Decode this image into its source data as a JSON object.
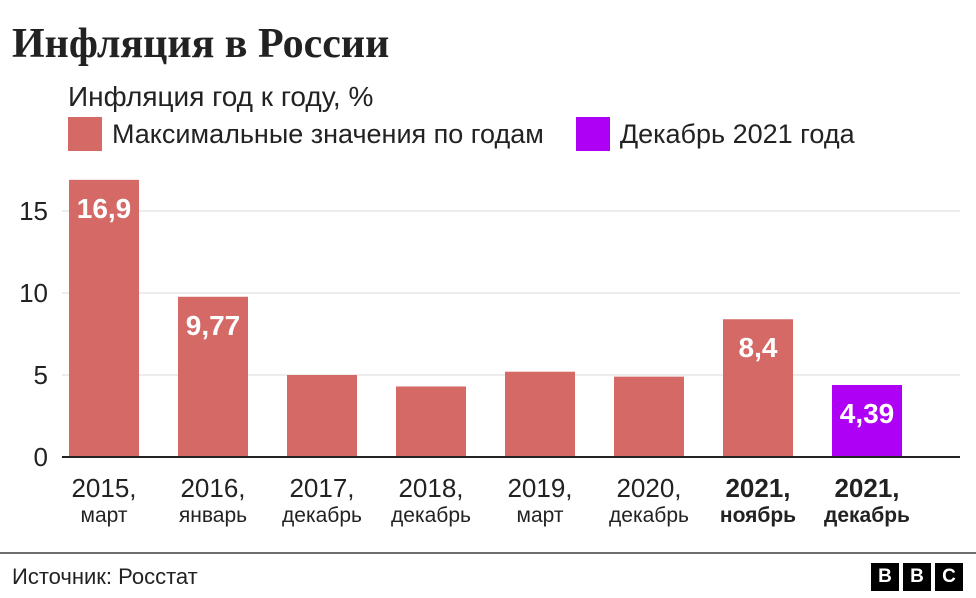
{
  "header": {
    "title": "Инфляция в России",
    "subtitle": "Инфляция год к году, %"
  },
  "legend": [
    {
      "label": "Максимальные значения по годам",
      "color": "#d46966"
    },
    {
      "label": "Декабрь 2021 года",
      "color": "#ad00f5"
    }
  ],
  "chart_data": {
    "type": "bar",
    "categories": [
      {
        "line1": "2015,",
        "line2": "март",
        "bold": false
      },
      {
        "line1": "2016,",
        "line2": "январь",
        "bold": false
      },
      {
        "line1": "2017,",
        "line2": "декабрь",
        "bold": false
      },
      {
        "line1": "2018,",
        "line2": "декабрь",
        "bold": false
      },
      {
        "line1": "2019,",
        "line2": "март",
        "bold": false
      },
      {
        "line1": "2020,",
        "line2": "декабрь",
        "bold": false
      },
      {
        "line1": "2021,",
        "line2": "ноябрь",
        "bold": true
      },
      {
        "line1": "2021,",
        "line2": "декабрь",
        "bold": true
      }
    ],
    "values": [
      16.9,
      9.77,
      5.0,
      4.3,
      5.2,
      4.9,
      8.4,
      4.39
    ],
    "data_labels": [
      "16,9",
      "9,77",
      "",
      "",
      "",
      "",
      "8,4",
      "4,39"
    ],
    "bar_colors": [
      "#d46966",
      "#d46966",
      "#d46966",
      "#d46966",
      "#d46966",
      "#d46966",
      "#d46966",
      "#ad00f5"
    ],
    "ylim": [
      0,
      17
    ],
    "yticks": [
      0,
      5,
      10,
      15
    ],
    "grid": true
  },
  "footer": {
    "source": "Источник: Росстат",
    "logo": [
      "B",
      "B",
      "C"
    ]
  }
}
